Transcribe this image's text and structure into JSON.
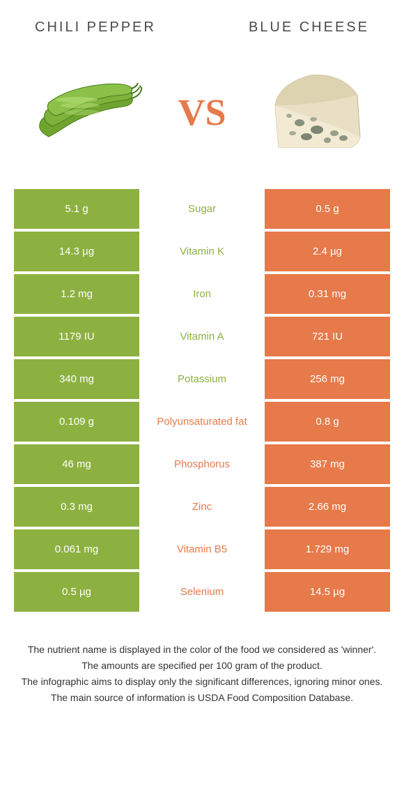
{
  "colors": {
    "left": "#8db141",
    "right": "#e67a4a",
    "text": "#333333",
    "bg": "#ffffff"
  },
  "header": {
    "left_title": "Chili pepper",
    "right_title": "Blue cheese",
    "vs": "VS"
  },
  "rows": [
    {
      "left": "5.1 g",
      "label": "Sugar",
      "right": "0.5 g",
      "winner": "left"
    },
    {
      "left": "14.3 µg",
      "label": "Vitamin K",
      "right": "2.4 µg",
      "winner": "left"
    },
    {
      "left": "1.2 mg",
      "label": "Iron",
      "right": "0.31 mg",
      "winner": "left"
    },
    {
      "left": "1179 IU",
      "label": "Vitamin A",
      "right": "721 IU",
      "winner": "left"
    },
    {
      "left": "340 mg",
      "label": "Potassium",
      "right": "256 mg",
      "winner": "left"
    },
    {
      "left": "0.109 g",
      "label": "Polyunsaturated fat",
      "right": "0.8 g",
      "winner": "right"
    },
    {
      "left": "46 mg",
      "label": "Phosphorus",
      "right": "387 mg",
      "winner": "right"
    },
    {
      "left": "0.3 mg",
      "label": "Zinc",
      "right": "2.66 mg",
      "winner": "right"
    },
    {
      "left": "0.061 mg",
      "label": "Vitamin B5",
      "right": "1.729 mg",
      "winner": "right"
    },
    {
      "left": "0.5 µg",
      "label": "Selenium",
      "right": "14.5 µg",
      "winner": "right"
    }
  ],
  "footer": {
    "line1": "The nutrient name is displayed in the color of the food we considered as 'winner'.",
    "line2": "The amounts are specified per 100 gram of the product.",
    "line3": "The infographic aims to display only the significant differences, ignoring minor ones.",
    "line4": "The main source of information is USDA Food Composition Database."
  }
}
